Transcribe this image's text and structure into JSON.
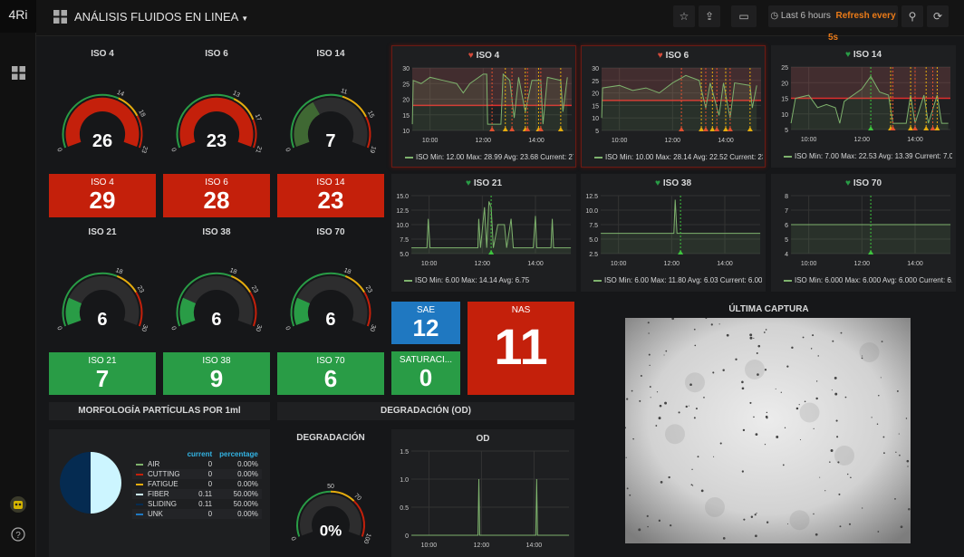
{
  "app": {
    "logo": "4Ri",
    "title": "ANÁLISIS FLUIDOS EN LINEA",
    "time_range": "Last 6 hours",
    "refresh": "Refresh every 5s"
  },
  "colors": {
    "red": "#c4200b",
    "green": "#299c46",
    "blue": "#1f78c1",
    "yellow": "#e5ac0e",
    "graph_line": "#7eb26d"
  },
  "gauges": [
    {
      "title": "ISO 4",
      "value": 26,
      "min": 0,
      "max": 23,
      "t1": 14,
      "t2": 18,
      "labels": [
        "0",
        "14",
        "18",
        "23"
      ],
      "color": "#c4200b"
    },
    {
      "title": "ISO 6",
      "value": 23,
      "min": 0,
      "max": 21,
      "t1": 13,
      "t2": 17,
      "labels": [
        "0",
        "13",
        "17",
        "21"
      ],
      "color": "#c4200b"
    },
    {
      "title": "ISO 14",
      "value": 7,
      "min": 0,
      "max": 19,
      "t1": 11,
      "t2": 15,
      "labels": [
        "0",
        "11",
        "15",
        "19"
      ],
      "color": "#3f6833"
    },
    {
      "title": "ISO 21",
      "value": 6,
      "min": 0,
      "max": 30,
      "t1": 18,
      "t2": 23,
      "labels": [
        "0",
        "18",
        "23",
        "30"
      ],
      "color": "#299c46"
    },
    {
      "title": "ISO 38",
      "value": 6,
      "min": 0,
      "max": 30,
      "t1": 18,
      "t2": 23,
      "labels": [
        "0",
        "18",
        "23",
        "30"
      ],
      "color": "#299c46"
    },
    {
      "title": "ISO 70",
      "value": 6,
      "min": 0,
      "max": 30,
      "t1": 18,
      "t2": 23,
      "labels": [
        "0",
        "18",
        "23",
        "30"
      ],
      "color": "#299c46"
    }
  ],
  "stats": [
    {
      "title": "ISO 4",
      "value": "29",
      "color": "#c4200b"
    },
    {
      "title": "ISO 6",
      "value": "28",
      "color": "#c4200b"
    },
    {
      "title": "ISO 14",
      "value": "23",
      "color": "#c4200b"
    },
    {
      "title": "ISO 21",
      "value": "7",
      "color": "#299c46"
    },
    {
      "title": "ISO 38",
      "value": "9",
      "color": "#299c46"
    },
    {
      "title": "ISO 70",
      "value": "6",
      "color": "#299c46"
    },
    {
      "title": "SAE",
      "value": "12",
      "color": "#1f78c1"
    },
    {
      "title": "SATURACI...",
      "value": "0",
      "color": "#299c46"
    },
    {
      "title": "NAS",
      "value": "11",
      "color": "#c4200b"
    }
  ],
  "graphs": [
    {
      "title": "ISO 4",
      "alert": "alerting",
      "ylim": [
        10,
        30
      ],
      "yticks": [
        "10",
        "15",
        "20",
        "25",
        "30"
      ],
      "threshold": 18,
      "xticks": [
        "10:00",
        "12:00",
        "14:00"
      ],
      "legend": "ISO  Min: 12.00  Max: 28.99  Avg: 23.68  Current: 27.2",
      "annotations": [
        "12:20",
        "12:50",
        "13:05",
        "13:35",
        "13:40",
        "14:05",
        "14:10",
        "14:55"
      ],
      "series": [
        [
          "09:20",
          12
        ],
        [
          "09:22",
          26
        ],
        [
          "09:40",
          25
        ],
        [
          "10:00",
          27
        ],
        [
          "10:30",
          26
        ],
        [
          "11:00",
          25
        ],
        [
          "11:15",
          22
        ],
        [
          "11:30",
          25
        ],
        [
          "12:00",
          28
        ],
        [
          "12:08",
          28
        ],
        [
          "12:10",
          12
        ],
        [
          "12:40",
          12
        ],
        [
          "12:45",
          28
        ],
        [
          "13:00",
          26
        ],
        [
          "13:10",
          14
        ],
        [
          "13:20",
          27
        ],
        [
          "13:35",
          16
        ],
        [
          "13:50",
          26
        ],
        [
          "14:10",
          26
        ],
        [
          "14:15",
          12
        ],
        [
          "14:25",
          27
        ],
        [
          "14:55",
          26
        ],
        [
          "15:00",
          16
        ],
        [
          "15:10",
          27
        ]
      ]
    },
    {
      "title": "ISO 6",
      "alert": "alerting",
      "ylim": [
        5,
        30
      ],
      "yticks": [
        "5",
        "10",
        "15",
        "20",
        "25",
        "30"
      ],
      "threshold": 17,
      "xticks": [
        "10:00",
        "12:00",
        "14:00"
      ],
      "legend": "ISO  Min: 10.00  Max: 28.14  Avg: 22.52  Current: 23.5",
      "annotations": [
        "12:20",
        "13:05",
        "13:15",
        "13:30",
        "13:40",
        "14:00",
        "14:10",
        "14:55"
      ],
      "series": [
        [
          "09:20",
          10
        ],
        [
          "09:22",
          22
        ],
        [
          "10:00",
          23
        ],
        [
          "10:30",
          21
        ],
        [
          "11:00",
          22
        ],
        [
          "11:30",
          20
        ],
        [
          "12:00",
          24
        ],
        [
          "12:30",
          27
        ],
        [
          "13:00",
          25
        ],
        [
          "13:15",
          14
        ],
        [
          "13:25",
          24
        ],
        [
          "13:45",
          11
        ],
        [
          "13:55",
          24
        ],
        [
          "14:10",
          10
        ],
        [
          "14:20",
          24
        ],
        [
          "14:55",
          23
        ],
        [
          "15:00",
          14
        ],
        [
          "15:10",
          23
        ]
      ]
    },
    {
      "title": "ISO 14",
      "alert": "ok",
      "ylim": [
        5,
        25
      ],
      "yticks": [
        "5",
        "10",
        "15",
        "20",
        "25"
      ],
      "threshold": 15,
      "xticks": [
        "10:00",
        "12:00",
        "14:00"
      ],
      "legend": "ISO  Min: 7.00  Max: 22.53  Avg: 13.39  Current: 7.00",
      "annotations": [
        "12:20",
        "13:05",
        "13:10",
        "13:50",
        "14:00",
        "14:25",
        "14:40",
        "14:50"
      ],
      "series": [
        [
          "09:20",
          7
        ],
        [
          "09:30",
          15
        ],
        [
          "10:00",
          16
        ],
        [
          "10:20",
          12
        ],
        [
          "10:40",
          13
        ],
        [
          "11:00",
          12
        ],
        [
          "11:10",
          7
        ],
        [
          "11:20",
          14
        ],
        [
          "12:00",
          18
        ],
        [
          "12:20",
          22
        ],
        [
          "12:40",
          17
        ],
        [
          "13:00",
          16
        ],
        [
          "13:10",
          7
        ],
        [
          "13:40",
          7
        ],
        [
          "13:50",
          16
        ],
        [
          "14:00",
          7
        ],
        [
          "14:20",
          16
        ],
        [
          "14:30",
          7
        ],
        [
          "14:50",
          16
        ],
        [
          "15:00",
          7
        ],
        [
          "15:15",
          7
        ]
      ]
    },
    {
      "title": "ISO 21",
      "alert": "ok",
      "ylim": [
        5,
        15
      ],
      "yticks": [
        "5.0",
        "7.5",
        "10.0",
        "12.5",
        "15.0"
      ],
      "xticks": [
        "10:00",
        "12:00",
        "14:00"
      ],
      "legend": "ISO  Min: 6.00  Max: 14.14  Avg: 6.75",
      "annotations": [
        "12:20"
      ],
      "series": [
        [
          "09:20",
          6
        ],
        [
          "09:55",
          6
        ],
        [
          "09:58",
          11
        ],
        [
          "10:02",
          6
        ],
        [
          "11:50",
          6
        ],
        [
          "11:52",
          11
        ],
        [
          "11:56",
          6
        ],
        [
          "12:05",
          13
        ],
        [
          "12:10",
          6
        ],
        [
          "12:15",
          14
        ],
        [
          "12:20",
          13
        ],
        [
          "12:25",
          6
        ],
        [
          "12:35",
          10
        ],
        [
          "12:50",
          10
        ],
        [
          "12:55",
          6
        ],
        [
          "13:05",
          11
        ],
        [
          "13:10",
          6
        ],
        [
          "13:55",
          6
        ],
        [
          "14:00",
          11.5
        ],
        [
          "14:03",
          6
        ],
        [
          "14:35",
          6
        ],
        [
          "14:38",
          11
        ],
        [
          "14:41",
          6
        ],
        [
          "15:20",
          6
        ]
      ]
    },
    {
      "title": "ISO 38",
      "alert": "ok",
      "ylim": [
        2.5,
        12.5
      ],
      "yticks": [
        "2.5",
        "5.0",
        "7.5",
        "10.0",
        "12.5"
      ],
      "xticks": [
        "10:00",
        "12:00",
        "14:00"
      ],
      "legend": "ISO  Min: 6.00  Max: 11.80  Avg: 6.03  Current: 6.00",
      "annotations": [
        "12:20"
      ],
      "series": [
        [
          "09:20",
          6
        ],
        [
          "12:05",
          6
        ],
        [
          "12:08",
          11.8
        ],
        [
          "12:12",
          6
        ],
        [
          "15:20",
          6
        ]
      ]
    },
    {
      "title": "ISO 70",
      "alert": "ok",
      "ylim": [
        4,
        8
      ],
      "yticks": [
        "4",
        "5",
        "6",
        "7",
        "8"
      ],
      "xticks": [
        "10:00",
        "12:00",
        "14:00"
      ],
      "legend": "ISO  Min: 6.000  Max: 6.000  Avg: 6.000  Current: 6.00",
      "annotations": [
        "12:20"
      ],
      "series": [
        [
          "09:20",
          6
        ],
        [
          "15:20",
          6
        ]
      ]
    },
    {
      "title": "OD",
      "alert": "none",
      "ylim": [
        0,
        1.5
      ],
      "yticks": [
        "0",
        "0.5",
        "1.0",
        "1.5"
      ],
      "xticks": [
        "10:00",
        "12:00",
        "14:00"
      ],
      "legend": "",
      "annotations": [],
      "series": [
        [
          "09:20",
          0
        ],
        [
          "11:52",
          0
        ],
        [
          "11:54",
          1
        ],
        [
          "11:56",
          0
        ],
        [
          "14:04",
          0
        ],
        [
          "14:06",
          1
        ],
        [
          "14:08",
          0
        ],
        [
          "15:20",
          0
        ]
      ]
    }
  ],
  "rows": {
    "morf": "MORFOLOGÍA PARTÍCULAS POR 1ml",
    "degr": "DEGRADACIÓN (OD)"
  },
  "pie": {
    "headers": [
      "current",
      "percentage"
    ],
    "items": [
      {
        "name": "AIR",
        "current": "0",
        "pct": "0.00%",
        "color": "#7eb26d"
      },
      {
        "name": "CUTTING",
        "current": "0",
        "pct": "0.00%",
        "color": "#c4200b"
      },
      {
        "name": "FATIGUE",
        "current": "0",
        "pct": "0.00%",
        "color": "#e5ac0e"
      },
      {
        "name": "FIBER",
        "current": "0.11",
        "pct": "50.00%",
        "color": "#ccf5ff"
      },
      {
        "name": "SLIDING",
        "current": "0.11",
        "pct": "50.00%",
        "color": "#052b51"
      },
      {
        "name": "UNK",
        "current": "0",
        "pct": "0.00%",
        "color": "#1f78c1"
      }
    ]
  },
  "degr_gauge": {
    "title": "DEGRADACIÓN",
    "value": 0,
    "display": "0%",
    "min": 0,
    "max": 100,
    "t1": 50,
    "t2": 70,
    "labels": [
      "0",
      "50",
      "70",
      "100"
    ]
  },
  "capture": {
    "title": "ÚLTIMA CAPTURA"
  }
}
